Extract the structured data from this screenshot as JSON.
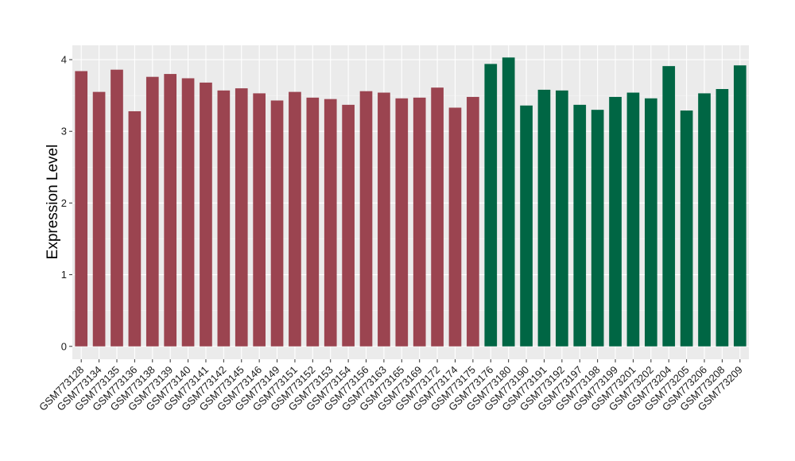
{
  "chart_data": {
    "type": "bar",
    "title": "",
    "xlabel": "",
    "ylabel": "Expression Level",
    "ylim": [
      -0.18,
      4.2
    ],
    "yticks": [
      0,
      1,
      2,
      3,
      4
    ],
    "grid": true,
    "legend": "none",
    "background": "#ebebeb",
    "categories": [
      "GSM773128",
      "GSM773134",
      "GSM773135",
      "GSM773136",
      "GSM773138",
      "GSM773139",
      "GSM773140",
      "GSM773141",
      "GSM773142",
      "GSM773145",
      "GSM773146",
      "GSM773149",
      "GSM773151",
      "GSM773152",
      "GSM773153",
      "GSM773154",
      "GSM773156",
      "GSM773163",
      "GSM773165",
      "GSM773169",
      "GSM773172",
      "GSM773174",
      "GSM773175",
      "GSM773176",
      "GSM773180",
      "GSM773190",
      "GSM773191",
      "GSM773192",
      "GSM773197",
      "GSM773198",
      "GSM773199",
      "GSM773201",
      "GSM773202",
      "GSM773204",
      "GSM773205",
      "GSM773206",
      "GSM773208",
      "GSM773209"
    ],
    "values": [
      3.84,
      3.55,
      3.86,
      3.28,
      3.76,
      3.8,
      3.74,
      3.68,
      3.57,
      3.6,
      3.53,
      3.43,
      3.55,
      3.47,
      3.45,
      3.37,
      3.56,
      3.54,
      3.46,
      3.47,
      3.61,
      3.33,
      3.48,
      3.94,
      4.03,
      3.36,
      3.58,
      3.57,
      3.37,
      3.3,
      3.48,
      3.54,
      3.46,
      3.91,
      3.29,
      3.53,
      3.59,
      3.92
    ],
    "groups": [
      0,
      0,
      0,
      0,
      0,
      0,
      0,
      0,
      0,
      0,
      0,
      0,
      0,
      0,
      0,
      0,
      0,
      0,
      0,
      0,
      0,
      0,
      0,
      1,
      1,
      1,
      1,
      1,
      1,
      1,
      1,
      1,
      1,
      1,
      1,
      1,
      1,
      1
    ],
    "colors": [
      "#9b4450",
      "#006644"
    ]
  }
}
